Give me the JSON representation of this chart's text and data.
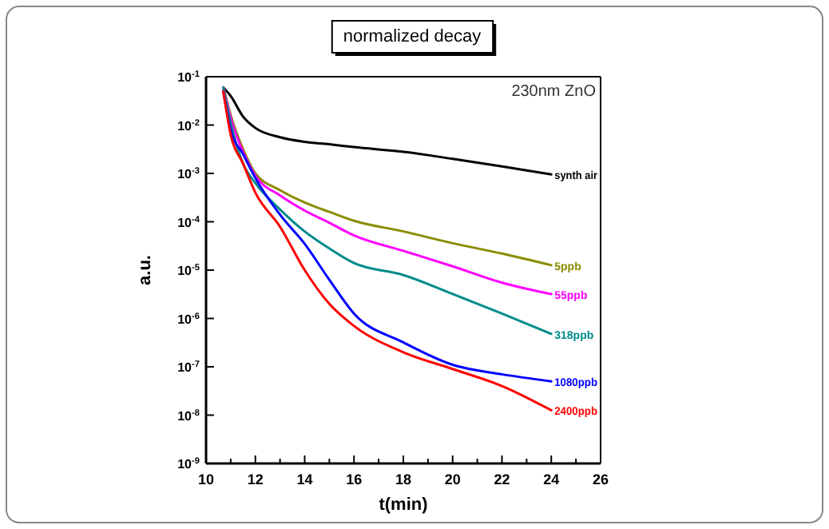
{
  "chart_data": {
    "type": "line",
    "title": "normalized decay",
    "xlabel": "t(min)",
    "ylabel": "a.u.",
    "annotations": [
      "230nm ZnO"
    ],
    "x": [
      10.7,
      11,
      11.5,
      12,
      13,
      14,
      15,
      16,
      18,
      20,
      22,
      24
    ],
    "series": [
      {
        "name": "synth air",
        "color": "#000000",
        "values": [
          0.06,
          0.04,
          0.015,
          0.0087,
          0.0056,
          0.0045,
          0.004,
          0.0035,
          0.0028,
          0.002,
          0.0014,
          0.00095
        ]
      },
      {
        "name": "5ppb",
        "color": "#8b8b00",
        "values": [
          0.06,
          0.016,
          0.0032,
          0.001,
          0.00045,
          0.00025,
          0.00016,
          0.000105,
          6.3e-05,
          3.6e-05,
          2.2e-05,
          1.26e-05
        ]
      },
      {
        "name": "55ppb",
        "color": "#ff00ff",
        "values": [
          0.06,
          0.014,
          0.0028,
          0.0009,
          0.00035,
          0.00017,
          9.5e-05,
          5.2e-05,
          2.5e-05,
          1.2e-05,
          5.5e-06,
          3.2e-06
        ]
      },
      {
        "name": "318ppb",
        "color": "#008b8b",
        "values": [
          0.06,
          0.011,
          0.0016,
          0.00063,
          0.00018,
          6.3e-05,
          2.8e-05,
          1.4e-05,
          7.9e-06,
          3.2e-06,
          1.26e-06,
          4.8e-07
        ]
      },
      {
        "name": "1080ppb",
        "color": "#0000ff",
        "values": [
          0.05,
          0.0079,
          0.0025,
          0.0008,
          0.00014,
          3.5e-05,
          6.3e-06,
          1.26e-06,
          3.2e-07,
          1.1e-07,
          7e-08,
          5e-08
        ]
      },
      {
        "name": "2400ppb",
        "color": "#ff0000",
        "values": [
          0.05,
          0.0063,
          0.0016,
          0.0004,
          7.9e-05,
          1e-05,
          2e-06,
          7e-07,
          2e-07,
          9e-08,
          4e-08,
          1.26e-08
        ]
      }
    ],
    "log": "y",
    "xlim": [
      10,
      26
    ],
    "ylim": [
      1e-09,
      0.1
    ],
    "xticks": [
      10,
      {
        "value": 11,
        "label": null
      },
      12,
      {
        "value": 13,
        "label": null
      },
      14,
      {
        "value": 15,
        "label": null
      },
      16,
      {
        "value": 17,
        "label": null
      },
      18,
      {
        "value": 19,
        "label": null
      },
      20,
      {
        "value": 21,
        "label": null
      },
      22,
      {
        "value": 23,
        "label": null
      },
      24,
      {
        "value": 25,
        "label": null
      },
      26
    ],
    "yticks": [
      {
        "value": 1e-09,
        "label": "10$^{-9}$"
      },
      {
        "value": 1e-08,
        "label": "10$^{-8}$"
      },
      {
        "value": 1e-07,
        "label": "10$^{-7}$"
      },
      {
        "value": 1e-06,
        "label": "10$^{-6}$"
      },
      {
        "value": 1e-05,
        "label": "10$^{-5}$"
      },
      {
        "value": 0.0001,
        "label": "10$^{-4}$"
      },
      {
        "value": 0.001,
        "label": "10$^{-3}$"
      },
      {
        "value": 0.01,
        "label": "10$^{-2}$"
      },
      {
        "value": 0.1,
        "label": "10$^{-1}$"
      }
    ],
    "legend": false,
    "grid": false,
    "marker": "none",
    "line_style": "solid"
  }
}
